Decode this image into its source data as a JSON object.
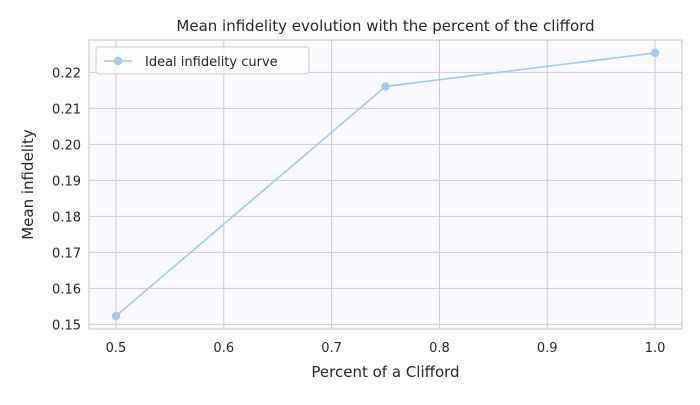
{
  "chart_data": {
    "type": "line",
    "title": "Mean infidelity evolution with the percent of the clifford",
    "xlabel": "Percent of a Clifford",
    "ylabel": "Mean infidelity",
    "x": [
      0.5,
      0.75,
      1.0
    ],
    "series": [
      {
        "name": "Ideal infidelity curve",
        "values": [
          0.1523,
          0.2161,
          0.2254
        ],
        "color": "#a1c9f4"
      }
    ],
    "xlim": [
      0.475,
      1.025
    ],
    "ylim": [
      0.1487,
      0.229
    ],
    "xticks": [
      "0.5",
      "0.6",
      "0.7",
      "0.8",
      "0.9",
      "1.0"
    ],
    "yticks": [
      "0.15",
      "0.16",
      "0.17",
      "0.18",
      "0.19",
      "0.20",
      "0.21",
      "0.22"
    ],
    "grid": true,
    "legend_position": "top-left",
    "colors": {
      "plot_background": "#fafafe",
      "grid": "#cccccc",
      "axes_edge": "#cccccc"
    }
  }
}
